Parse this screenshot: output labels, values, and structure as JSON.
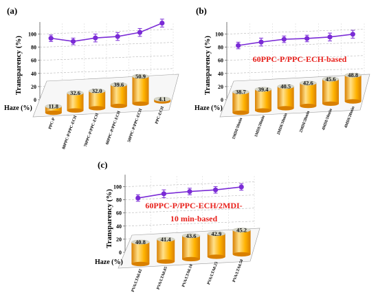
{
  "colors": {
    "line": "#7a2bd6",
    "bar_light": "#ffe08a",
    "bar_mid": "#ffb300",
    "bar_dark": "#d98000",
    "bar_top": "#d7d7c8",
    "annotation": "#e8211c"
  },
  "chart_data": [
    {
      "panel_label": "(a)",
      "type": "line+bar",
      "ylabel": "Transparency (%)",
      "haze_label": "Haze (%)",
      "yticks": [
        "0",
        "20",
        "40",
        "60",
        "80",
        "100"
      ],
      "ylim": [
        0,
        110
      ],
      "annotation": [],
      "categories": [
        "PPC-P",
        "80PPC-P/PPC-ECH",
        "70PPC-P/PPC-ECH",
        "60PPC-P/PPC-ECH",
        "50PPC-P/PPC-ECH",
        "PPC-ECH"
      ],
      "transparency": {
        "values": [
          93,
          87,
          91,
          92,
          97,
          110
        ],
        "errors": [
          5,
          5,
          6,
          6,
          6,
          6
        ]
      },
      "haze": {
        "values": [
          11.8,
          32.6,
          32.0,
          39.6,
          50.9,
          4.1
        ],
        "labels": [
          "11.8",
          "32.6",
          "32.0",
          "39.6",
          "50.9",
          "4.1"
        ]
      }
    },
    {
      "panel_label": "(b)",
      "type": "line+bar",
      "ylabel": "Transparency (%)",
      "haze_label": "Haze (%)",
      "yticks": [
        "0",
        "20",
        "40",
        "60",
        "80",
        "100"
      ],
      "ylim": [
        0,
        110
      ],
      "annotation": [
        "60PPC-P/PPC-ECH-based"
      ],
      "categories": [
        "1MDI/10min",
        "1MDI/20min",
        "2MDI/10min",
        "2MDI/20min",
        "4MDI/10min",
        "4MDI/20min"
      ],
      "transparency": {
        "values": [
          82,
          86,
          89,
          89,
          90,
          93
        ],
        "errors": [
          5,
          6,
          5,
          5,
          6,
          6
        ]
      },
      "haze": {
        "values": [
          38.7,
          39.4,
          40.5,
          42.6,
          45.6,
          48.8
        ],
        "labels": [
          "38.7",
          "39.4",
          "40.5",
          "42.6",
          "45.6",
          "48.8"
        ]
      }
    },
    {
      "panel_label": "(c)",
      "type": "line+bar",
      "ylabel": "Transparency (%)",
      "haze_label": "Haze (%)",
      "yticks": [
        "0",
        "20",
        "40",
        "60",
        "80",
        "100"
      ],
      "ylim": [
        0,
        110
      ],
      "annotation": [
        "60PPC-P/PPC-ECH/2MDI-",
        "10 min-based"
      ],
      "categories": [
        "PVA/LTA0.02",
        "PVA/LTA0.05",
        "PVA/LTA0.10",
        "PVA/LTA0.25",
        "PVA/LTA0.50"
      ],
      "transparency": {
        "values": [
          82,
          87,
          89,
          90,
          93
        ],
        "errors": [
          5,
          6,
          5,
          5,
          5
        ]
      },
      "haze": {
        "values": [
          40.8,
          41.4,
          43.6,
          42.9,
          45.2
        ],
        "labels": [
          "40.8",
          "41.4",
          "43.6",
          "42.9",
          "45.2"
        ]
      }
    }
  ]
}
